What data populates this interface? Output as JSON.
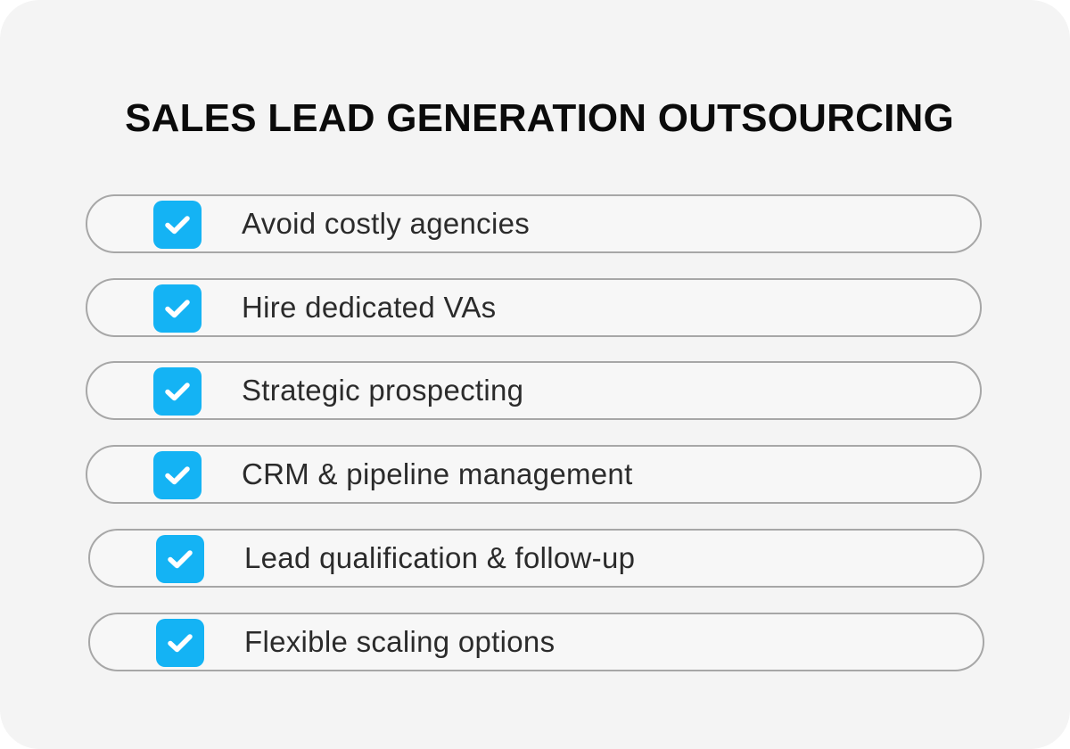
{
  "title": "SALES LEAD GENERATION OUTSOURCING",
  "colors": {
    "background": "#f4f4f4",
    "pill_border": "#a7a7a7",
    "check_fill": "#14b3f4",
    "text": "#2b2b2b"
  },
  "items": [
    {
      "label": "Avoid costly agencies",
      "icon": "checkbox-checked-icon"
    },
    {
      "label": "Hire dedicated VAs",
      "icon": "checkbox-checked-icon"
    },
    {
      "label": "Strategic prospecting",
      "icon": "checkbox-checked-icon"
    },
    {
      "label": "CRM & pipeline management",
      "icon": "checkbox-checked-icon"
    },
    {
      "label": "Lead qualification & follow-up",
      "icon": "checkbox-checked-icon"
    },
    {
      "label": "Flexible scaling options",
      "icon": "checkbox-checked-icon"
    }
  ]
}
